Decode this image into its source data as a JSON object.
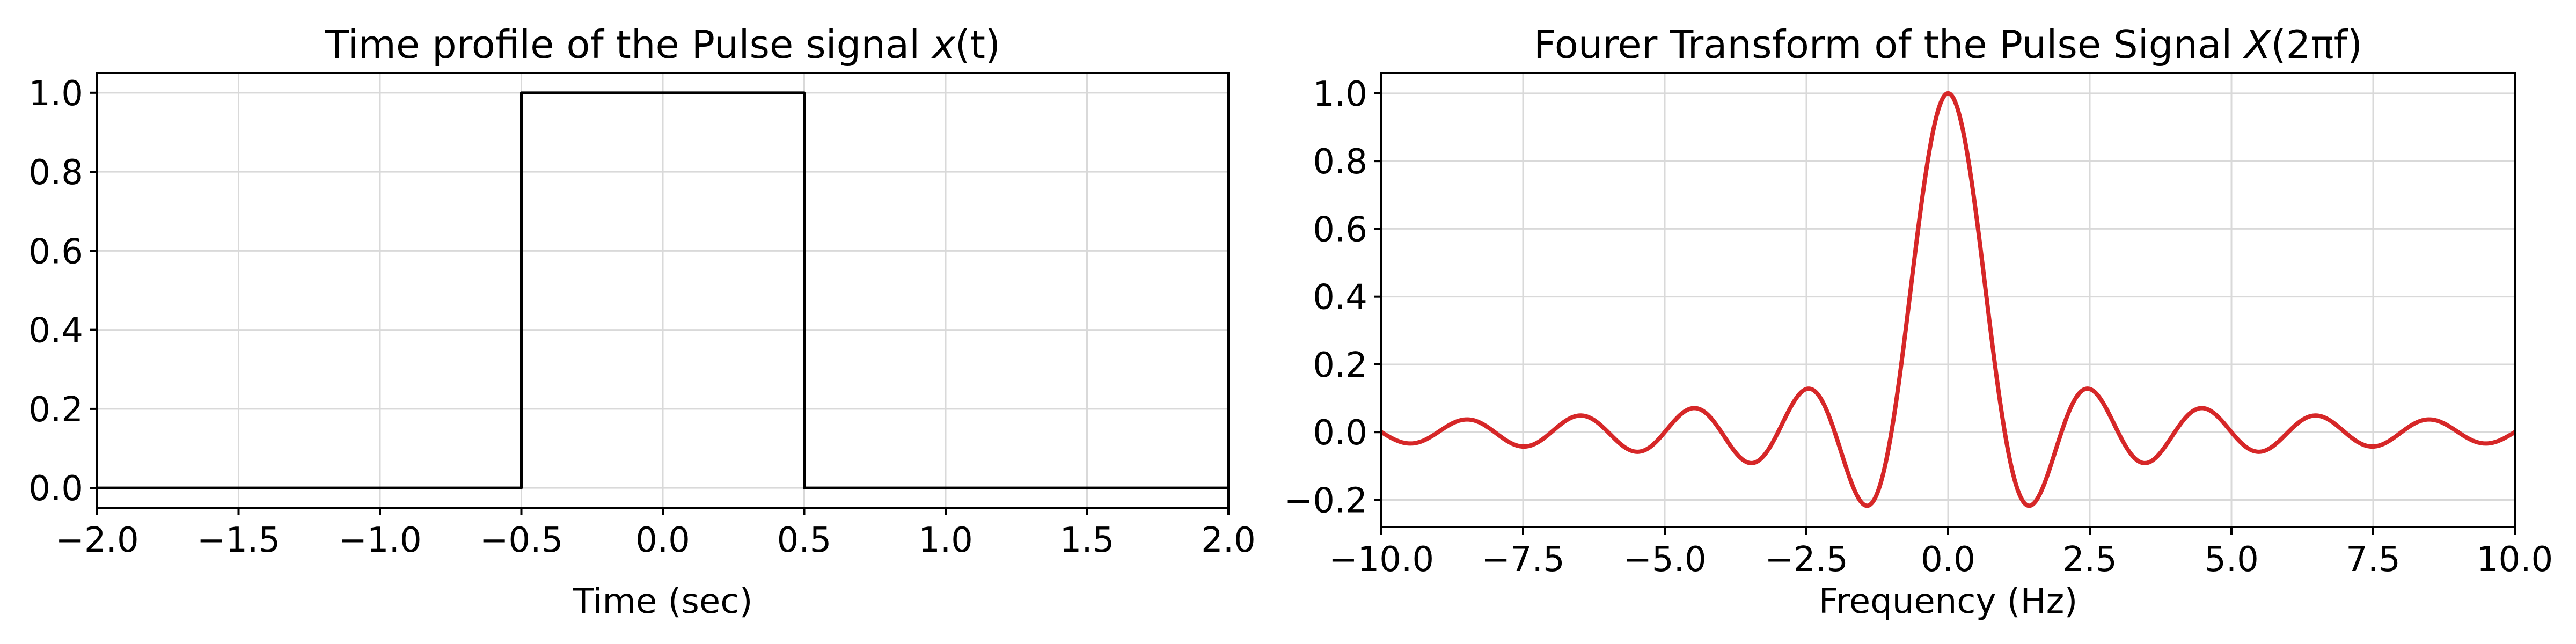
{
  "chart_data": [
    {
      "type": "line",
      "title_text": "Time profile of the Pulse signal ",
      "title_math": "x",
      "title_tail": "(t)",
      "xlabel": "Time (sec)",
      "ylabel": "",
      "xlim": [
        -2.0,
        2.0
      ],
      "ylim": [
        -0.05,
        1.05
      ],
      "xticks": [
        -2.0,
        -1.5,
        -1.0,
        -0.5,
        0.0,
        0.5,
        1.0,
        1.5,
        2.0
      ],
      "xtick_labels": [
        "−2.0",
        "−1.5",
        "−1.0",
        "−0.5",
        "0.0",
        "0.5",
        "1.0",
        "1.5",
        "2.0"
      ],
      "yticks": [
        0.0,
        0.2,
        0.4,
        0.6,
        0.8,
        1.0
      ],
      "ytick_labels": [
        "0.0",
        "0.2",
        "0.4",
        "0.6",
        "0.8",
        "1.0"
      ],
      "grid": true,
      "series": [
        {
          "color": "#000000",
          "x": [
            -2.0,
            -0.5,
            -0.5,
            0.5,
            0.5,
            2.0
          ],
          "y": [
            0.0,
            0.0,
            1.0,
            1.0,
            0.0,
            0.0
          ]
        }
      ]
    },
    {
      "type": "line",
      "title_text": "Fourer Transform of the Pulse Signal ",
      "title_math": "X",
      "title_tail": "(2πf)",
      "xlabel": "Frequency (Hz)",
      "ylabel": "",
      "xlim": [
        -10.0,
        10.0
      ],
      "ylim": [
        -0.28,
        1.06
      ],
      "xticks": [
        -10.0,
        -7.5,
        -5.0,
        -2.5,
        0.0,
        2.5,
        5.0,
        7.5,
        10.0
      ],
      "xtick_labels": [
        "−10.0",
        "−7.5",
        "−5.0",
        "−2.5",
        "0.0",
        "2.5",
        "5.0",
        "7.5",
        "10.0"
      ],
      "yticks": [
        -0.2,
        0.0,
        0.2,
        0.4,
        0.6,
        0.8,
        1.0
      ],
      "ytick_labels": [
        "−0.2",
        "0.0",
        "0.2",
        "0.4",
        "0.6",
        "0.8",
        "1.0"
      ],
      "grid": true,
      "series": [
        {
          "color": "#d62728",
          "function": "sinc",
          "x_range": [
            -10.0,
            10.0
          ]
        }
      ]
    }
  ]
}
